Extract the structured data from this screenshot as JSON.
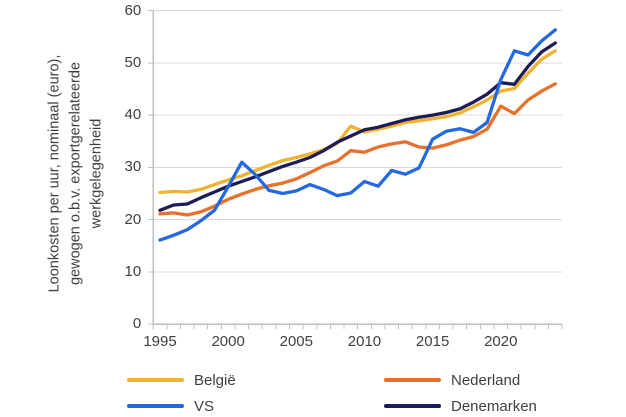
{
  "chart_data": {
    "type": "line",
    "title": "",
    "ylabel_lines": [
      "Loonkosten per uur, nominaal (euro),",
      "gewogen o.b.v. exportgerelateerde",
      "werkgelegenheid"
    ],
    "x": [
      1995,
      1996,
      1997,
      1998,
      1999,
      2000,
      2001,
      2002,
      2003,
      2004,
      2005,
      2006,
      2007,
      2008,
      2009,
      2010,
      2011,
      2012,
      2013,
      2014,
      2015,
      2016,
      2017,
      2018,
      2019,
      2020,
      2021,
      2022,
      2023,
      2024
    ],
    "xticks": [
      1995,
      2000,
      2005,
      2010,
      2015,
      2020
    ],
    "yticks": [
      0,
      10,
      20,
      30,
      40,
      50,
      60
    ],
    "xlim": [
      1994.5,
      2024.5
    ],
    "ylim": [
      0,
      60
    ],
    "grid": "horizontal",
    "legend_position": "bottom-two-columns",
    "series": [
      {
        "name": "België",
        "color": "#f0b32e",
        "values": [
          25.2,
          25.4,
          25.3,
          25.8,
          26.7,
          27.6,
          28.4,
          29.4,
          30.4,
          31.3,
          31.9,
          32.6,
          33.4,
          34.6,
          37.9,
          36.8,
          37.3,
          37.9,
          38.6,
          38.9,
          39.3,
          39.7,
          40.4,
          41.6,
          42.9,
          44.6,
          45.1,
          48.0,
          50.7,
          52.3
        ]
      },
      {
        "name": "Nederland",
        "color": "#e8702a",
        "values": [
          21.1,
          21.3,
          20.9,
          21.5,
          22.6,
          23.9,
          24.9,
          25.8,
          26.5,
          27.0,
          27.8,
          29.0,
          30.3,
          31.2,
          33.2,
          32.9,
          33.9,
          34.5,
          34.9,
          33.9,
          33.7,
          34.3,
          35.2,
          35.9,
          37.3,
          41.7,
          40.3,
          42.9,
          44.6,
          46.0
        ]
      },
      {
        "name": "VS",
        "color": "#2468e0",
        "values": [
          16.1,
          17.0,
          18.1,
          19.8,
          21.8,
          26.3,
          31.0,
          28.6,
          25.6,
          25.0,
          25.5,
          26.7,
          25.8,
          24.6,
          25.1,
          27.3,
          26.4,
          29.4,
          28.7,
          29.9,
          35.4,
          36.9,
          37.4,
          36.7,
          38.6,
          46.8,
          52.3,
          51.5,
          54.2,
          56.3
        ]
      },
      {
        "name": "Denemarken",
        "color": "#1e1c58",
        "values": [
          21.8,
          22.8,
          23.0,
          24.2,
          25.3,
          26.4,
          27.3,
          28.2,
          29.2,
          30.2,
          31.0,
          31.9,
          33.2,
          34.8,
          36.0,
          37.2,
          37.7,
          38.4,
          39.1,
          39.6,
          40.0,
          40.5,
          41.2,
          42.5,
          44.0,
          46.2,
          45.9,
          49.3,
          52.1,
          53.8
        ]
      }
    ],
    "colors": {
      "axis": "#bfbfbf",
      "gridline": "#d9d9d9",
      "text": "#404040",
      "background": "#ffffff"
    }
  }
}
